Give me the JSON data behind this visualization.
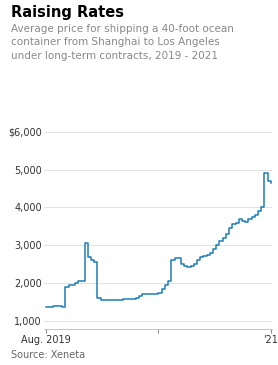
{
  "title": "Raising Rates",
  "subtitle": "Average price for shipping a 40-foot ocean\ncontainer from Shanghai to Los Angeles\nunder long-term contracts, 2019 - 2021",
  "source": "Source: Xeneta",
  "line_color": "#1b7db8",
  "background_color": "#ffffff",
  "ylim": [
    800,
    6200
  ],
  "yticks": [
    1000,
    2000,
    3000,
    4000,
    5000,
    6000
  ],
  "ytick_labels": [
    "1,000",
    "2,000",
    "3,000",
    "4,000",
    "5,000",
    "$6,000"
  ],
  "xtick_labels": [
    "Aug. 2019",
    "",
    "'21"
  ],
  "series": [
    1380,
    1380,
    1390,
    1400,
    1390,
    1380,
    1900,
    1950,
    1960,
    2000,
    2050,
    2050,
    3050,
    2700,
    2600,
    2550,
    1600,
    1560,
    1550,
    1550,
    1560,
    1560,
    1560,
    1555,
    1570,
    1580,
    1590,
    1590,
    1600,
    1650,
    1700,
    1700,
    1700,
    1720,
    1720,
    1750,
    1850,
    1950,
    2050,
    2600,
    2650,
    2650,
    2500,
    2450,
    2420,
    2450,
    2500,
    2600,
    2700,
    2720,
    2750,
    2800,
    2900,
    3000,
    3100,
    3200,
    3300,
    3450,
    3550,
    3600,
    3700,
    3650,
    3620,
    3700,
    3750,
    3800,
    3900,
    4000,
    4900,
    4700,
    4650
  ]
}
